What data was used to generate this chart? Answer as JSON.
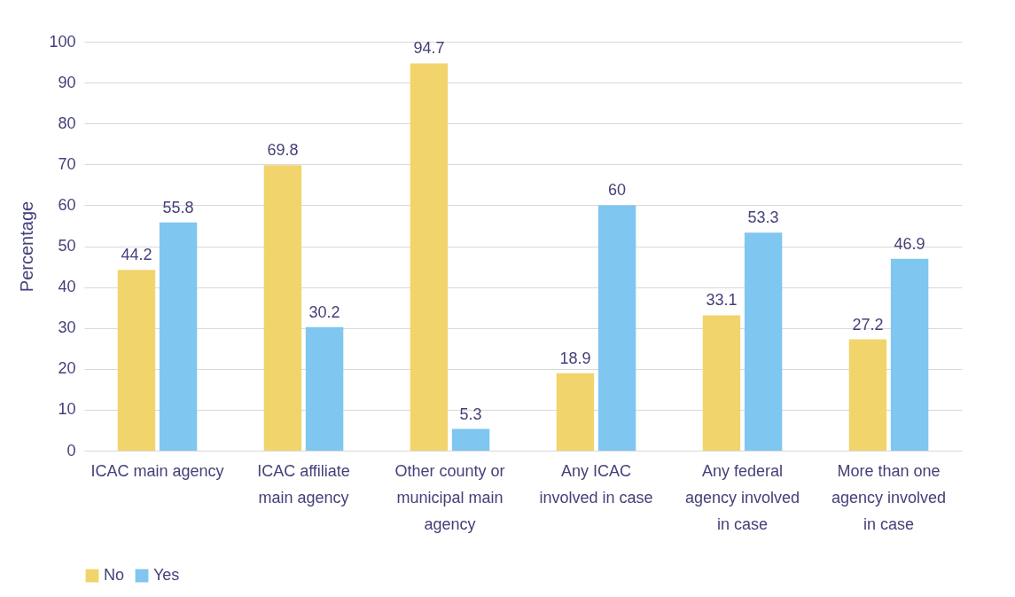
{
  "chart_data": {
    "type": "bar",
    "ylabel": "Percentage",
    "categories": [
      "ICAC main agency",
      "ICAC affiliate main agency",
      "Other county or municipal main agency",
      "Any ICAC involved in case",
      "Any federal agency involved in case",
      "More than one agency involved in case"
    ],
    "series": [
      {
        "name": "No",
        "color": "#f2d46c",
        "values": [
          44.2,
          69.8,
          94.7,
          18.9,
          33.1,
          27.2
        ]
      },
      {
        "name": "Yes",
        "color": "#7fc6f0",
        "values": [
          55.8,
          30.2,
          5.3,
          60,
          53.3,
          46.9
        ]
      }
    ],
    "ylim": [
      0,
      100
    ],
    "yticks": [
      0,
      10,
      20,
      30,
      40,
      50,
      60,
      70,
      80,
      90,
      100
    ],
    "grid": "y",
    "legend": "bottom",
    "data_labels": true
  }
}
